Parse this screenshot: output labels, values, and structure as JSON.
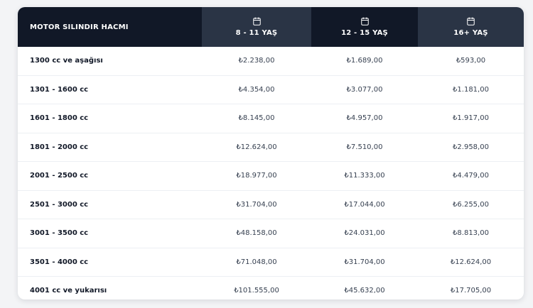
{
  "table": {
    "header": {
      "label": "MOTOR SILINDIR HACMI",
      "columns": [
        {
          "label": "8 - 11 YAŞ",
          "icon": "calendar-icon"
        },
        {
          "label": "12 - 15 YAŞ",
          "icon": "calendar-icon"
        },
        {
          "label": "16+ YAŞ",
          "icon": "calendar-icon"
        }
      ]
    },
    "rows": [
      {
        "label": "1300 cc ve aşağısı",
        "values": [
          "₺2.238,00",
          "₺1.689,00",
          "₺593,00"
        ]
      },
      {
        "label": "1301 - 1600 cc",
        "values": [
          "₺4.354,00",
          "₺3.077,00",
          "₺1.181,00"
        ]
      },
      {
        "label": "1601 - 1800 cc",
        "values": [
          "₺8.145,00",
          "₺4.957,00",
          "₺1.917,00"
        ]
      },
      {
        "label": "1801 - 2000 cc",
        "values": [
          "₺12.624,00",
          "₺7.510,00",
          "₺2.958,00"
        ]
      },
      {
        "label": "2001 - 2500 cc",
        "values": [
          "₺18.977,00",
          "₺11.333,00",
          "₺4.479,00"
        ]
      },
      {
        "label": "2501 - 3000 cc",
        "values": [
          "₺31.704,00",
          "₺17.044,00",
          "₺6.255,00"
        ]
      },
      {
        "label": "3001 - 3500 cc",
        "values": [
          "₺48.158,00",
          "₺24.031,00",
          "₺8.813,00"
        ]
      },
      {
        "label": "3501 - 4000 cc",
        "values": [
          "₺71.048,00",
          "₺31.704,00",
          "₺12.624,00"
        ]
      },
      {
        "label": "4001 cc ve yukarısı",
        "values": [
          "₺101.555,00",
          "₺45.632,00",
          "₺17.705,00"
        ]
      }
    ]
  },
  "colors": {
    "header_dark": "#111827",
    "header_light": "#2a3445",
    "row_border": "#eceff3"
  }
}
